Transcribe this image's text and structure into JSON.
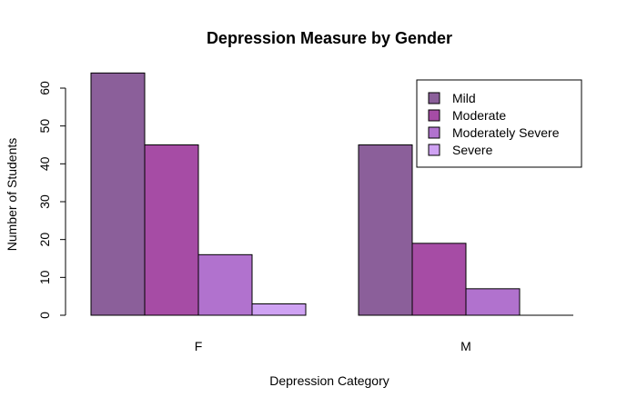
{
  "chart_data": {
    "type": "bar",
    "title": "Depression Measure by Gender",
    "xlabel": "Depression Category",
    "ylabel": "Number of Students",
    "categories": [
      "F",
      "M"
    ],
    "series": [
      {
        "name": "Mild",
        "values": [
          64,
          45
        ],
        "color": "#8B5F9A"
      },
      {
        "name": "Moderate",
        "values": [
          45,
          19
        ],
        "color": "#A64CA5"
      },
      {
        "name": "Moderately Severe",
        "values": [
          16,
          7
        ],
        "color": "#B172CE"
      },
      {
        "name": "Severe",
        "values": [
          3,
          0
        ],
        "color": "#CFA2F3"
      }
    ],
    "ylim": [
      0,
      60
    ],
    "yticks": [
      "0",
      "10",
      "20",
      "30",
      "40",
      "50",
      "60"
    ],
    "legend_position": "top-right",
    "grid": false
  }
}
